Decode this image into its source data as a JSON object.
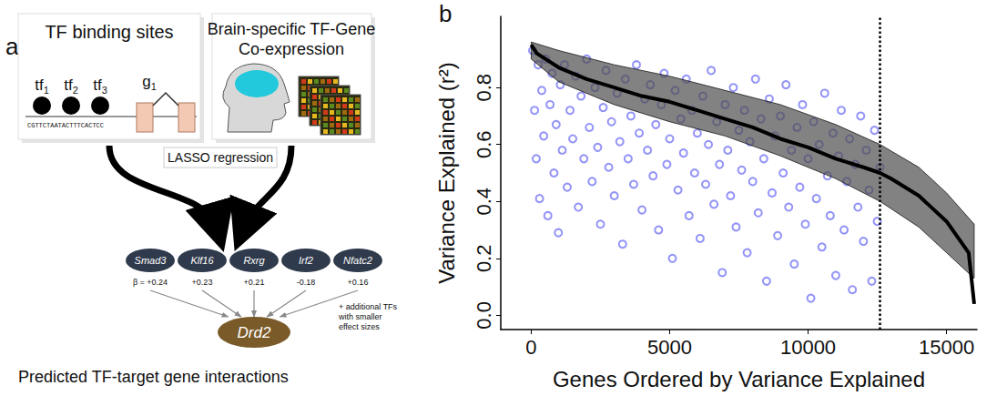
{
  "diagram": {
    "panel_label": "a",
    "binding_box": {
      "title": "TF binding sites",
      "tfs": [
        {
          "text": "tf",
          "sub": "1"
        },
        {
          "text": "tf",
          "sub": "2"
        },
        {
          "text": "tf",
          "sub": "3"
        }
      ],
      "gene": {
        "text": "g",
        "sub": "1"
      },
      "sequence": "CGTTCTAATACTTTCACTCC"
    },
    "coexpression_box": {
      "title": "Brain-specific TF-Gene Co-expression"
    },
    "method": "LASSO regression",
    "beta_prefix": "β = ",
    "tf_nodes": [
      {
        "name": "Smad3",
        "beta": "+0.24"
      },
      {
        "name": "Klf16",
        "beta": "+0.23"
      },
      {
        "name": "Rxrg",
        "beta": "+0.21"
      },
      {
        "name": "Irf2",
        "beta": "-0.18"
      },
      {
        "name": "Nfatc2",
        "beta": "+0.16"
      }
    ],
    "note": "+ additional TFs with smaller effect sizes",
    "target": "Drd2",
    "caption": "Predicted TF-target gene interactions"
  },
  "chart_data": {
    "type": "scatter",
    "panel_label": "b",
    "x_label": "Genes Ordered by Variance Explained",
    "y_label": "Variance Explained (r²)",
    "xlim": [
      -1100,
      16100
    ],
    "xticks": [
      0,
      5000,
      10000,
      15000
    ],
    "ylim": [
      -0.05,
      1.05
    ],
    "yticks": [
      {
        "value": 0,
        "label": "0.0"
      },
      {
        "value": 0.2,
        "label": "0.2"
      },
      {
        "value": 0.4,
        "label": "0.4"
      },
      {
        "value": 0.6,
        "label": "0.6"
      },
      {
        "value": 0.8,
        "label": "0.8"
      }
    ],
    "grid": false,
    "reference_line": {
      "x": 12600,
      "line_style": "dotted"
    },
    "series": [
      {
        "type": "scatter",
        "color": "#3b3bf2",
        "marker": "open_circle",
        "x": [
          50,
          120,
          180,
          250,
          300,
          380,
          450,
          520,
          600,
          680,
          750,
          820,
          900,
          980,
          1050,
          1120,
          1200,
          1300,
          1400,
          1500,
          1600,
          1700,
          1800,
          1900,
          2000,
          2100,
          2200,
          2300,
          2400,
          2500,
          2600,
          2700,
          2800,
          2900,
          3000,
          3100,
          3200,
          3300,
          3400,
          3500,
          3600,
          3700,
          3800,
          3900,
          4000,
          4100,
          4200,
          4300,
          4400,
          4500,
          4600,
          4700,
          4800,
          4900,
          5000,
          5100,
          5200,
          5300,
          5400,
          5500,
          5600,
          5700,
          5800,
          5900,
          6000,
          6100,
          6200,
          6300,
          6400,
          6500,
          6600,
          6700,
          6800,
          6900,
          7000,
          7100,
          7200,
          7300,
          7400,
          7500,
          7600,
          7700,
          7800,
          7900,
          8000,
          8100,
          8200,
          8300,
          8400,
          8500,
          8600,
          8700,
          8800,
          8900,
          9000,
          9100,
          9200,
          9300,
          9400,
          9500,
          9600,
          9700,
          9800,
          9900,
          10000,
          10100,
          10200,
          10300,
          10400,
          10500,
          10600,
          10700,
          10800,
          10900,
          11000,
          11100,
          11200,
          11300,
          11400,
          11500,
          11600,
          11700,
          11800,
          11900,
          12000,
          12100,
          12200,
          12300,
          12400,
          12500,
          12600
        ],
        "values": [
          0.93,
          0.72,
          0.55,
          0.88,
          0.41,
          0.79,
          0.63,
          0.9,
          0.35,
          0.74,
          0.85,
          0.5,
          0.67,
          0.29,
          0.81,
          0.58,
          0.88,
          0.45,
          0.72,
          0.62,
          0.84,
          0.38,
          0.77,
          0.55,
          0.9,
          0.66,
          0.47,
          0.8,
          0.59,
          0.32,
          0.73,
          0.86,
          0.52,
          0.68,
          0.42,
          0.78,
          0.61,
          0.25,
          0.83,
          0.55,
          0.7,
          0.46,
          0.88,
          0.64,
          0.37,
          0.76,
          0.58,
          0.81,
          0.49,
          0.67,
          0.3,
          0.74,
          0.85,
          0.53,
          0.62,
          0.2,
          0.79,
          0.44,
          0.69,
          0.57,
          0.83,
          0.35,
          0.72,
          0.5,
          0.64,
          0.27,
          0.77,
          0.46,
          0.6,
          0.86,
          0.39,
          0.68,
          0.53,
          0.15,
          0.74,
          0.58,
          0.42,
          0.8,
          0.31,
          0.65,
          0.51,
          0.72,
          0.22,
          0.61,
          0.47,
          0.83,
          0.36,
          0.69,
          0.55,
          0.12,
          0.76,
          0.43,
          0.63,
          0.28,
          0.7,
          0.5,
          0.81,
          0.38,
          0.58,
          0.18,
          0.66,
          0.45,
          0.74,
          0.32,
          0.55,
          0.06,
          0.68,
          0.41,
          0.6,
          0.24,
          0.78,
          0.49,
          0.35,
          0.64,
          0.14,
          0.56,
          0.72,
          0.3,
          0.47,
          0.62,
          0.09,
          0.53,
          0.38,
          0.7,
          0.26,
          0.58,
          0.44,
          0.12,
          0.65,
          0.33,
          0.52
        ]
      },
      {
        "type": "band",
        "color": "#4d4d4d",
        "x": [
          0,
          1000,
          3000,
          5000,
          7000,
          9000,
          11000,
          12600,
          14000,
          15000,
          16000
        ],
        "upper": [
          0.96,
          0.93,
          0.88,
          0.84,
          0.79,
          0.74,
          0.67,
          0.6,
          0.52,
          0.43,
          0.32
        ],
        "lower": [
          0.9,
          0.82,
          0.74,
          0.68,
          0.63,
          0.56,
          0.48,
          0.4,
          0.31,
          0.22,
          0.13
        ]
      },
      {
        "type": "line",
        "color": "#000000",
        "line_style": "solid",
        "x": [
          0,
          200,
          1000,
          2000,
          3000,
          4000,
          5000,
          6000,
          7000,
          8000,
          9000,
          10000,
          11000,
          12000,
          12600,
          13000,
          14000,
          15000,
          15800,
          16000
        ],
        "values": [
          0.95,
          0.92,
          0.87,
          0.83,
          0.8,
          0.77,
          0.75,
          0.72,
          0.69,
          0.66,
          0.62,
          0.59,
          0.55,
          0.52,
          0.5,
          0.48,
          0.42,
          0.33,
          0.22,
          0.04
        ]
      }
    ]
  }
}
